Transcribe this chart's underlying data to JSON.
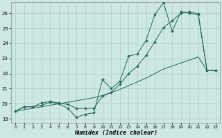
{
  "xlabel": "Humidex (Indice chaleur)",
  "bg_color": "#cde8e4",
  "grid_color": "#a8ceca",
  "line_color": "#2a6b5e",
  "xlim": [
    -0.5,
    23.5
  ],
  "ylim": [
    18.75,
    26.75
  ],
  "ytick_vals": [
    19,
    20,
    21,
    22,
    23,
    24,
    25,
    26
  ],
  "xtick_vals": [
    0,
    1,
    2,
    3,
    4,
    5,
    6,
    7,
    8,
    9,
    10,
    11,
    12,
    13,
    14,
    15,
    16,
    17,
    18,
    19,
    20,
    21,
    22,
    23
  ],
  "s1_x": [
    0,
    1,
    2,
    3,
    4,
    5,
    6,
    7,
    8,
    9,
    10,
    11,
    12,
    13,
    14,
    15,
    16,
    17,
    18,
    19,
    20,
    21,
    22,
    23
  ],
  "s1_y": [
    19.5,
    19.8,
    19.8,
    19.9,
    20.1,
    20.0,
    19.7,
    19.1,
    19.3,
    19.4,
    21.6,
    21.0,
    21.5,
    23.15,
    23.3,
    24.2,
    25.9,
    26.7,
    24.8,
    26.1,
    26.0,
    25.9,
    22.2,
    22.2
  ],
  "s2_x": [
    0,
    1,
    2,
    3,
    4,
    5,
    6,
    7,
    8,
    9,
    10,
    11,
    12,
    13,
    14,
    15,
    16,
    17,
    18,
    19,
    20,
    21,
    22,
    23
  ],
  "s2_y": [
    19.5,
    19.8,
    19.8,
    20.05,
    20.15,
    20.05,
    19.95,
    19.7,
    19.7,
    19.7,
    20.5,
    20.75,
    21.3,
    22.0,
    22.5,
    23.2,
    24.1,
    25.05,
    25.5,
    26.0,
    26.1,
    25.95,
    22.2,
    22.2
  ],
  "s3_x": [
    0,
    1,
    2,
    3,
    4,
    5,
    6,
    7,
    8,
    9,
    10,
    11,
    12,
    13,
    14,
    15,
    16,
    17,
    18,
    19,
    20,
    21,
    22,
    23
  ],
  "s3_y": [
    19.5,
    19.6,
    19.7,
    19.8,
    19.9,
    20.0,
    20.1,
    20.2,
    20.3,
    20.4,
    20.55,
    20.75,
    20.95,
    21.2,
    21.45,
    21.7,
    22.0,
    22.3,
    22.5,
    22.7,
    22.9,
    23.1,
    22.2,
    22.2
  ]
}
